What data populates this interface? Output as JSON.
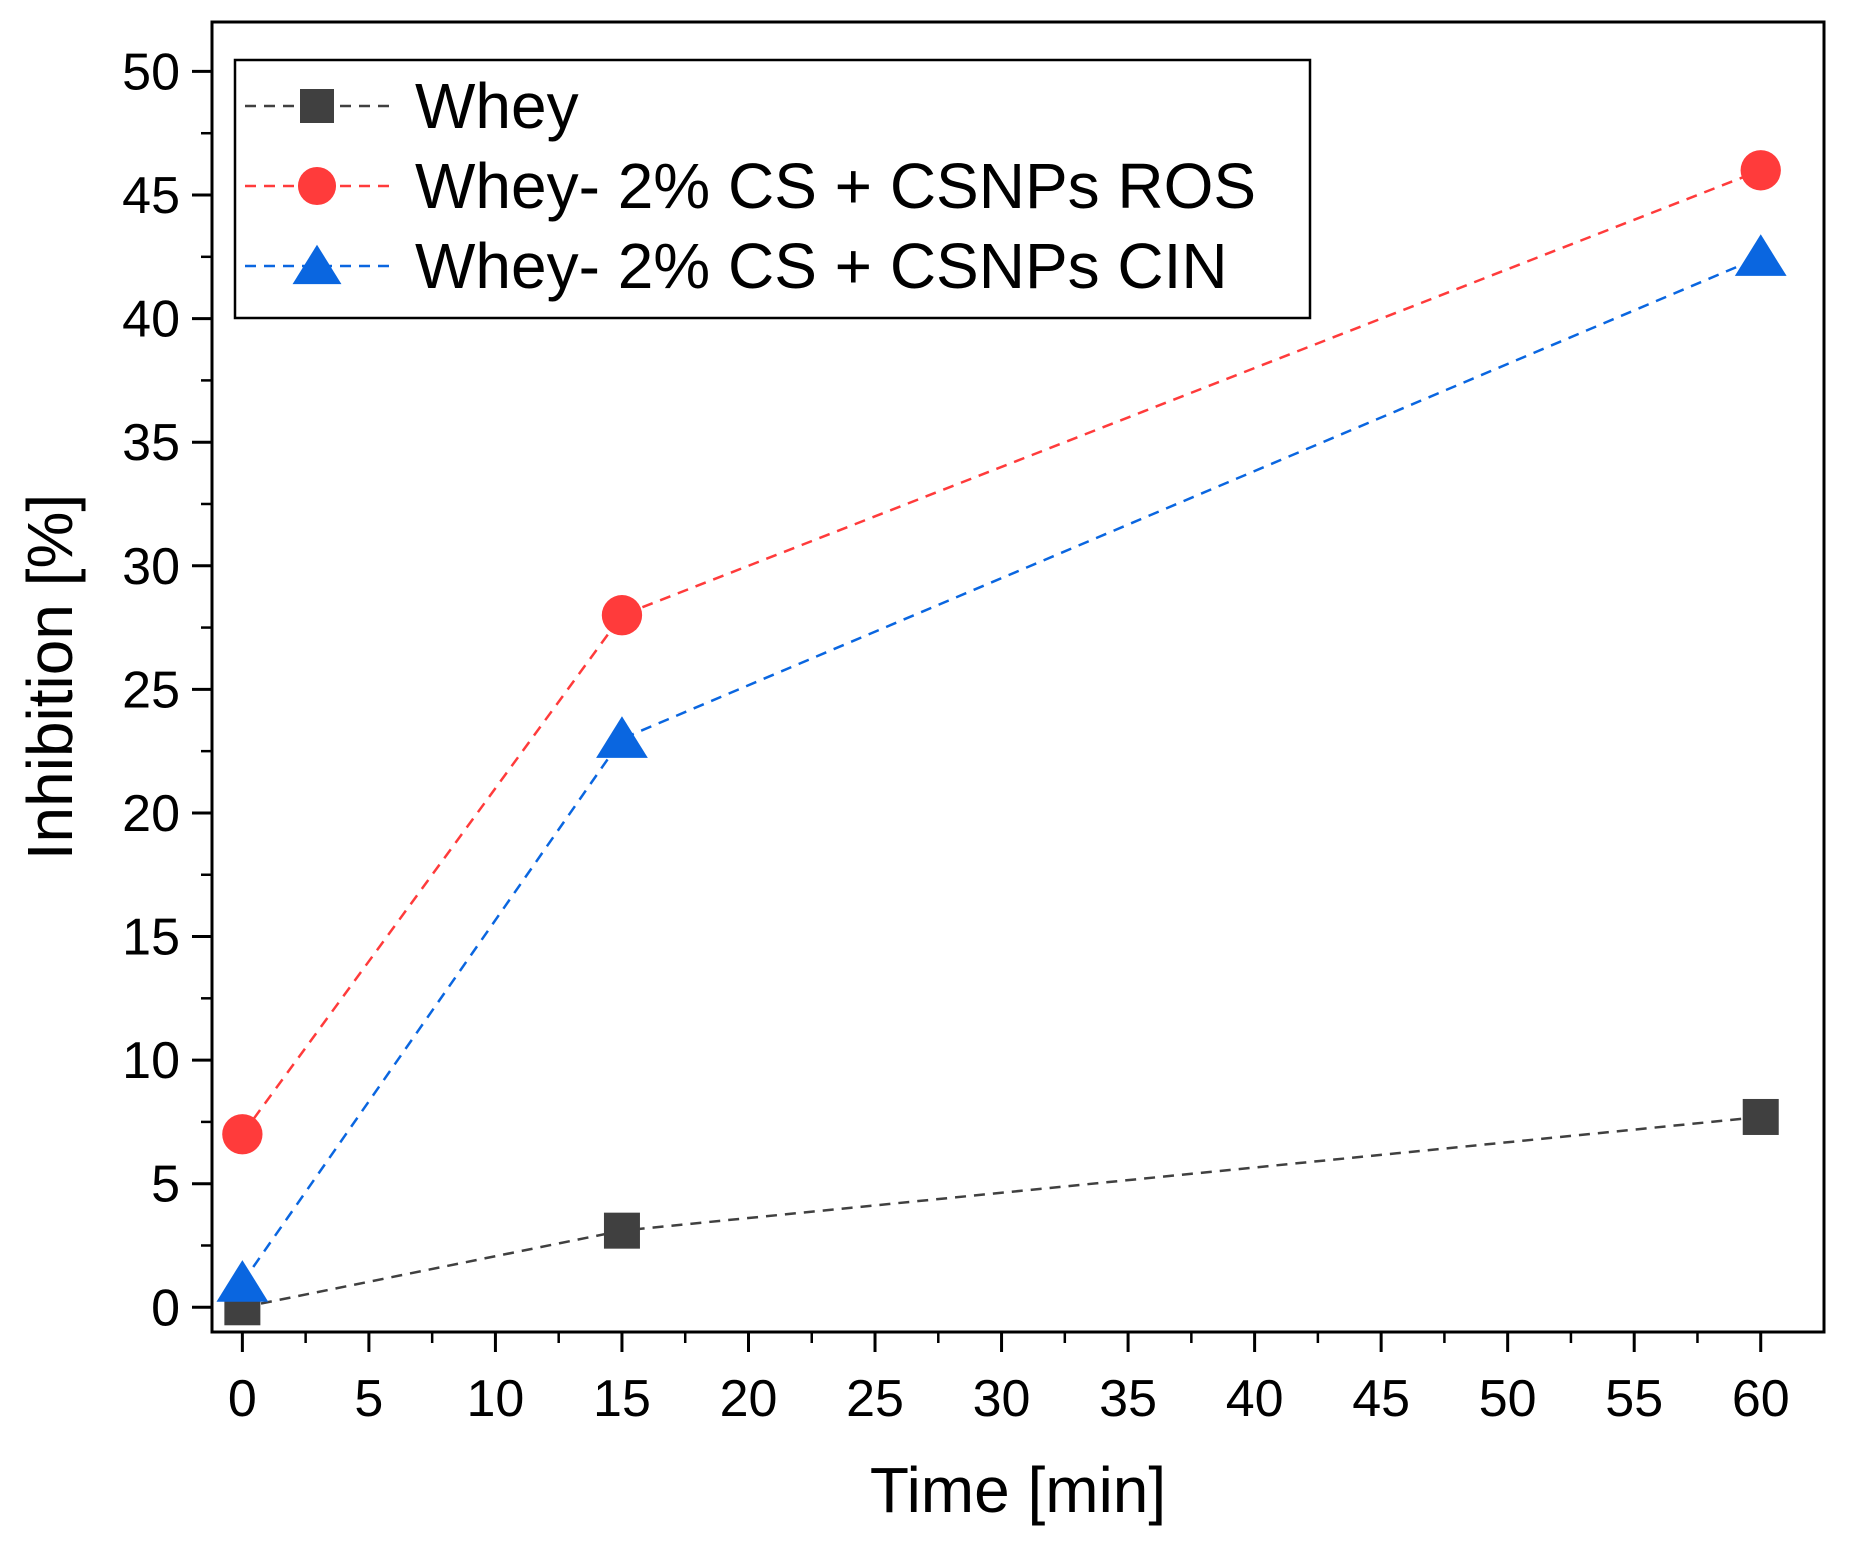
{
  "chart_data": {
    "type": "line",
    "title": "",
    "xlabel": "Time [min]",
    "ylabel": "Inhibition [%]",
    "xlim": [
      -1.2,
      62.5
    ],
    "ylim": [
      -1,
      52
    ],
    "xticks": [
      0,
      5,
      10,
      15,
      20,
      25,
      30,
      35,
      40,
      45,
      50,
      55,
      60
    ],
    "yticks": [
      0,
      5,
      10,
      15,
      20,
      25,
      30,
      35,
      40,
      45,
      50
    ],
    "x": [
      0,
      15,
      60
    ],
    "grid": false,
    "legend_position": "top-left",
    "series": [
      {
        "name": "Whey",
        "values": [
          0,
          3.1,
          7.7
        ],
        "color": "#404040",
        "marker": "square",
        "line_style": "dashed"
      },
      {
        "name": "Whey- 2% CS + CSNPs ROS",
        "values": [
          7,
          28,
          46
        ],
        "color": "#ff3b3b",
        "marker": "circle",
        "line_style": "dashed"
      },
      {
        "name": "Whey- 2% CS + CSNPs CIN",
        "values": [
          1,
          23,
          42.5
        ],
        "color": "#0a66e0",
        "marker": "triangle",
        "line_style": "dashed"
      }
    ]
  }
}
